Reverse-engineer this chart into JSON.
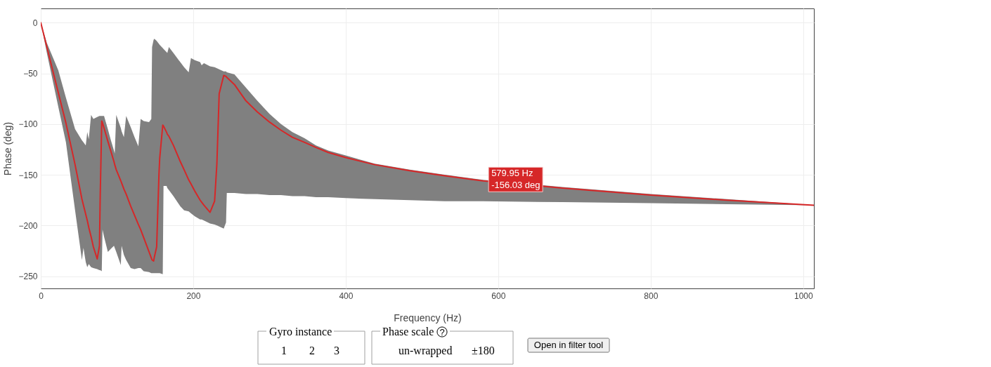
{
  "chart_data": {
    "type": "line",
    "xlabel": "Frequency (Hz)",
    "ylabel": "Phase (deg)",
    "xlim": [
      0,
      1014
    ],
    "xticks": [
      0,
      200,
      400,
      600,
      800,
      1000
    ],
    "ylim": [
      -262,
      14
    ],
    "yticks": [
      0,
      -50,
      -100,
      -150,
      -200,
      -250
    ],
    "grid": true,
    "x": [
      0,
      8,
      23,
      33,
      45,
      54,
      56,
      59,
      61,
      63,
      66,
      69,
      74,
      77,
      78,
      80,
      81,
      83,
      88,
      92,
      96,
      97,
      99,
      105,
      106,
      109,
      112,
      118,
      123,
      128,
      131,
      135,
      142,
      145,
      146,
      148,
      149,
      152,
      155,
      156,
      160,
      161,
      165,
      166,
      168,
      174,
      183,
      188,
      194,
      197,
      202,
      209,
      211,
      214,
      222,
      228,
      231,
      234,
      240,
      243,
      244,
      254,
      269,
      284,
      300,
      315,
      330,
      346,
      361,
      377,
      400,
      438,
      484,
      530,
      579.95,
      684,
      800,
      900,
      1014
    ],
    "series": [
      {
        "color": "#d62728",
        "values": [
          0,
          -24,
          -69,
          -99,
          -140,
          -174,
          -180,
          -189,
          -195,
          -202,
          -211,
          -221,
          -233,
          -220,
          -170,
          -97,
          -99,
          -104,
          -117,
          -127,
          -137,
          -140,
          -145,
          -156,
          -158,
          -164,
          -169,
          -181,
          -190,
          -199,
          -204,
          -212,
          -226,
          -232,
          -234,
          -235,
          -231,
          -221,
          -150,
          -134,
          -101,
          -102,
          -108,
          -110,
          -112,
          -121,
          -137,
          -145,
          -155,
          -159,
          -166,
          -175,
          -177,
          -180,
          -187,
          -176,
          -139,
          -70,
          -52,
          -53,
          -54,
          -61,
          -77,
          -88,
          -98,
          -106,
          -113,
          -118,
          -123,
          -128,
          -133,
          -140,
          -146,
          -151,
          -156.03,
          -163,
          -170,
          -175,
          -180
        ],
        "lower": [
          0,
          -30,
          -83,
          -118,
          -185,
          -234,
          -222,
          -236,
          -241,
          -238,
          -241,
          -242,
          -243,
          -244,
          -244,
          -245,
          -204,
          -211,
          -226,
          -223,
          -220,
          -222,
          -226,
          -239,
          -220,
          -229,
          -234,
          -242,
          -243,
          -242,
          -242,
          -245,
          -246,
          -247,
          -247,
          -247,
          -247,
          -247,
          -247,
          -247,
          -248,
          -161,
          -161,
          -163,
          -165,
          -171,
          -181,
          -185,
          -186,
          -188,
          -191,
          -194,
          -194,
          -195,
          -198,
          -199,
          -200,
          -201,
          -203,
          -197,
          -168,
          -168,
          -169,
          -169,
          -170,
          -170,
          -171,
          -171,
          -172,
          -172,
          -173,
          -174,
          -175,
          -176,
          -176,
          -177,
          -178,
          -179,
          -180
        ],
        "upper": [
          0,
          -20,
          -47,
          -74,
          -105,
          -116,
          -118,
          -121,
          -108,
          -115,
          -91,
          -95,
          -93,
          -92,
          -92,
          -92,
          -92,
          -92,
          -105,
          -116,
          -126,
          -129,
          -91,
          -104,
          -107,
          -113,
          -92,
          -103,
          -113,
          -122,
          -95,
          -97,
          -98,
          -95,
          -24,
          -17,
          -16,
          -18,
          -21,
          -22,
          -25,
          -26,
          -29,
          -30,
          -24,
          -30,
          -39,
          -44,
          -49,
          -35,
          -37,
          -39,
          -42,
          -40,
          -43,
          -44,
          -45,
          -46,
          -48,
          -48,
          -49,
          -51,
          -64,
          -77,
          -90,
          -100,
          -108,
          -114,
          -121,
          -126,
          -131,
          -139,
          -145,
          -150,
          -155,
          -162,
          -169,
          -174,
          -180
        ]
      }
    ],
    "annotations": [
      {
        "text": "579.95 Hz\n-156.03 deg",
        "x": 579.95,
        "y": -156.03
      },
      "Gyro instance",
      "1",
      "2",
      "3",
      "Phase scale",
      "?",
      "un-wrapped",
      "±180",
      "Open in filter tool"
    ]
  }
}
